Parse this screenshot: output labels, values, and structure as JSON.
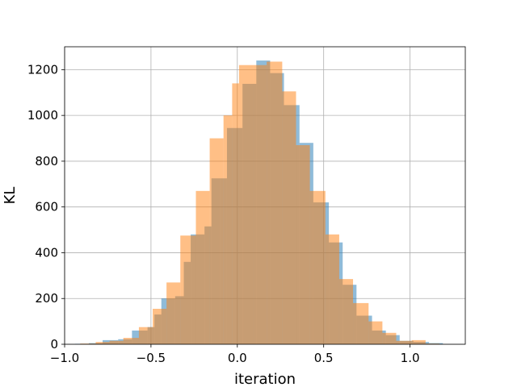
{
  "chart_data": {
    "type": "histogram",
    "xlabel": "iteration",
    "ylabel": "KL",
    "xlim": [
      -1.0,
      1.32
    ],
    "ylim": [
      0,
      1300
    ],
    "xticks": [
      -1.0,
      -0.5,
      0.0,
      0.5,
      1.0
    ],
    "xtick_labels": [
      "−1.0",
      "−0.5",
      "0.0",
      "0.5",
      "1.0"
    ],
    "yticks": [
      0,
      200,
      400,
      600,
      800,
      1000,
      1200
    ],
    "ytick_labels": [
      "0",
      "200",
      "400",
      "600",
      "800",
      "1000",
      "1200"
    ],
    "grid": true,
    "series": [
      {
        "color": "#1f77b4",
        "opacity": 0.5,
        "bins": [
          {
            "x0": -0.94,
            "x1": -0.86,
            "count": 2
          },
          {
            "x0": -0.86,
            "x1": -0.78,
            "count": 5
          },
          {
            "x0": -0.78,
            "x1": -0.69,
            "count": 18
          },
          {
            "x0": -0.69,
            "x1": -0.61,
            "count": 22
          },
          {
            "x0": -0.61,
            "x1": -0.52,
            "count": 60
          },
          {
            "x0": -0.52,
            "x1": -0.48,
            "count": 75
          },
          {
            "x0": -0.48,
            "x1": -0.44,
            "count": 130
          },
          {
            "x0": -0.44,
            "x1": -0.36,
            "count": 200
          },
          {
            "x0": -0.36,
            "x1": -0.31,
            "count": 210
          },
          {
            "x0": -0.31,
            "x1": -0.27,
            "count": 360
          },
          {
            "x0": -0.27,
            "x1": -0.19,
            "count": 480
          },
          {
            "x0": -0.19,
            "x1": -0.15,
            "count": 515
          },
          {
            "x0": -0.15,
            "x1": -0.1,
            "count": 725
          },
          {
            "x0": -0.1,
            "x1": -0.06,
            "count": 725
          },
          {
            "x0": -0.06,
            "x1": -0.02,
            "count": 945
          },
          {
            "x0": -0.02,
            "x1": 0.03,
            "count": 945
          },
          {
            "x0": 0.03,
            "x1": 0.11,
            "count": 1138
          },
          {
            "x0": 0.11,
            "x1": 0.19,
            "count": 1240
          },
          {
            "x0": 0.19,
            "x1": 0.27,
            "count": 1185
          },
          {
            "x0": 0.27,
            "x1": 0.36,
            "count": 1045
          },
          {
            "x0": 0.36,
            "x1": 0.44,
            "count": 880
          },
          {
            "x0": 0.44,
            "x1": 0.53,
            "count": 620
          },
          {
            "x0": 0.53,
            "x1": 0.61,
            "count": 445
          },
          {
            "x0": 0.61,
            "x1": 0.69,
            "count": 260
          },
          {
            "x0": 0.69,
            "x1": 0.78,
            "count": 125
          },
          {
            "x0": 0.78,
            "x1": 0.86,
            "count": 60
          },
          {
            "x0": 0.86,
            "x1": 0.94,
            "count": 40
          },
          {
            "x0": 0.94,
            "x1": 1.02,
            "count": 15
          },
          {
            "x0": 1.02,
            "x1": 1.11,
            "count": 10
          },
          {
            "x0": 1.11,
            "x1": 1.19,
            "count": 5
          }
        ]
      },
      {
        "color": "#ff7f0e",
        "opacity": 0.5,
        "bins": [
          {
            "x0": -0.91,
            "x1": -0.82,
            "count": 3
          },
          {
            "x0": -0.82,
            "x1": -0.74,
            "count": 10
          },
          {
            "x0": -0.74,
            "x1": -0.66,
            "count": 15
          },
          {
            "x0": -0.66,
            "x1": -0.57,
            "count": 28
          },
          {
            "x0": -0.57,
            "x1": -0.49,
            "count": 75
          },
          {
            "x0": -0.49,
            "x1": -0.41,
            "count": 155
          },
          {
            "x0": -0.41,
            "x1": -0.33,
            "count": 270
          },
          {
            "x0": -0.33,
            "x1": -0.24,
            "count": 475
          },
          {
            "x0": -0.24,
            "x1": -0.16,
            "count": 670
          },
          {
            "x0": -0.16,
            "x1": -0.08,
            "count": 900
          },
          {
            "x0": -0.08,
            "x1": -0.03,
            "count": 1000
          },
          {
            "x0": -0.03,
            "x1": 0.01,
            "count": 1140
          },
          {
            "x0": 0.01,
            "x1": 0.09,
            "count": 1220
          },
          {
            "x0": 0.09,
            "x1": 0.17,
            "count": 1220
          },
          {
            "x0": 0.17,
            "x1": 0.26,
            "count": 1235
          },
          {
            "x0": 0.26,
            "x1": 0.34,
            "count": 1105
          },
          {
            "x0": 0.34,
            "x1": 0.42,
            "count": 870
          },
          {
            "x0": 0.42,
            "x1": 0.51,
            "count": 670
          },
          {
            "x0": 0.51,
            "x1": 0.59,
            "count": 480
          },
          {
            "x0": 0.59,
            "x1": 0.67,
            "count": 285
          },
          {
            "x0": 0.67,
            "x1": 0.76,
            "count": 180
          },
          {
            "x0": 0.76,
            "x1": 0.84,
            "count": 100
          },
          {
            "x0": 0.84,
            "x1": 0.92,
            "count": 50
          },
          {
            "x0": 0.92,
            "x1": 1.01,
            "count": 15
          },
          {
            "x0": 1.01,
            "x1": 1.09,
            "count": 18
          },
          {
            "x0": 1.09,
            "x1": 1.17,
            "count": 3
          }
        ]
      }
    ]
  }
}
